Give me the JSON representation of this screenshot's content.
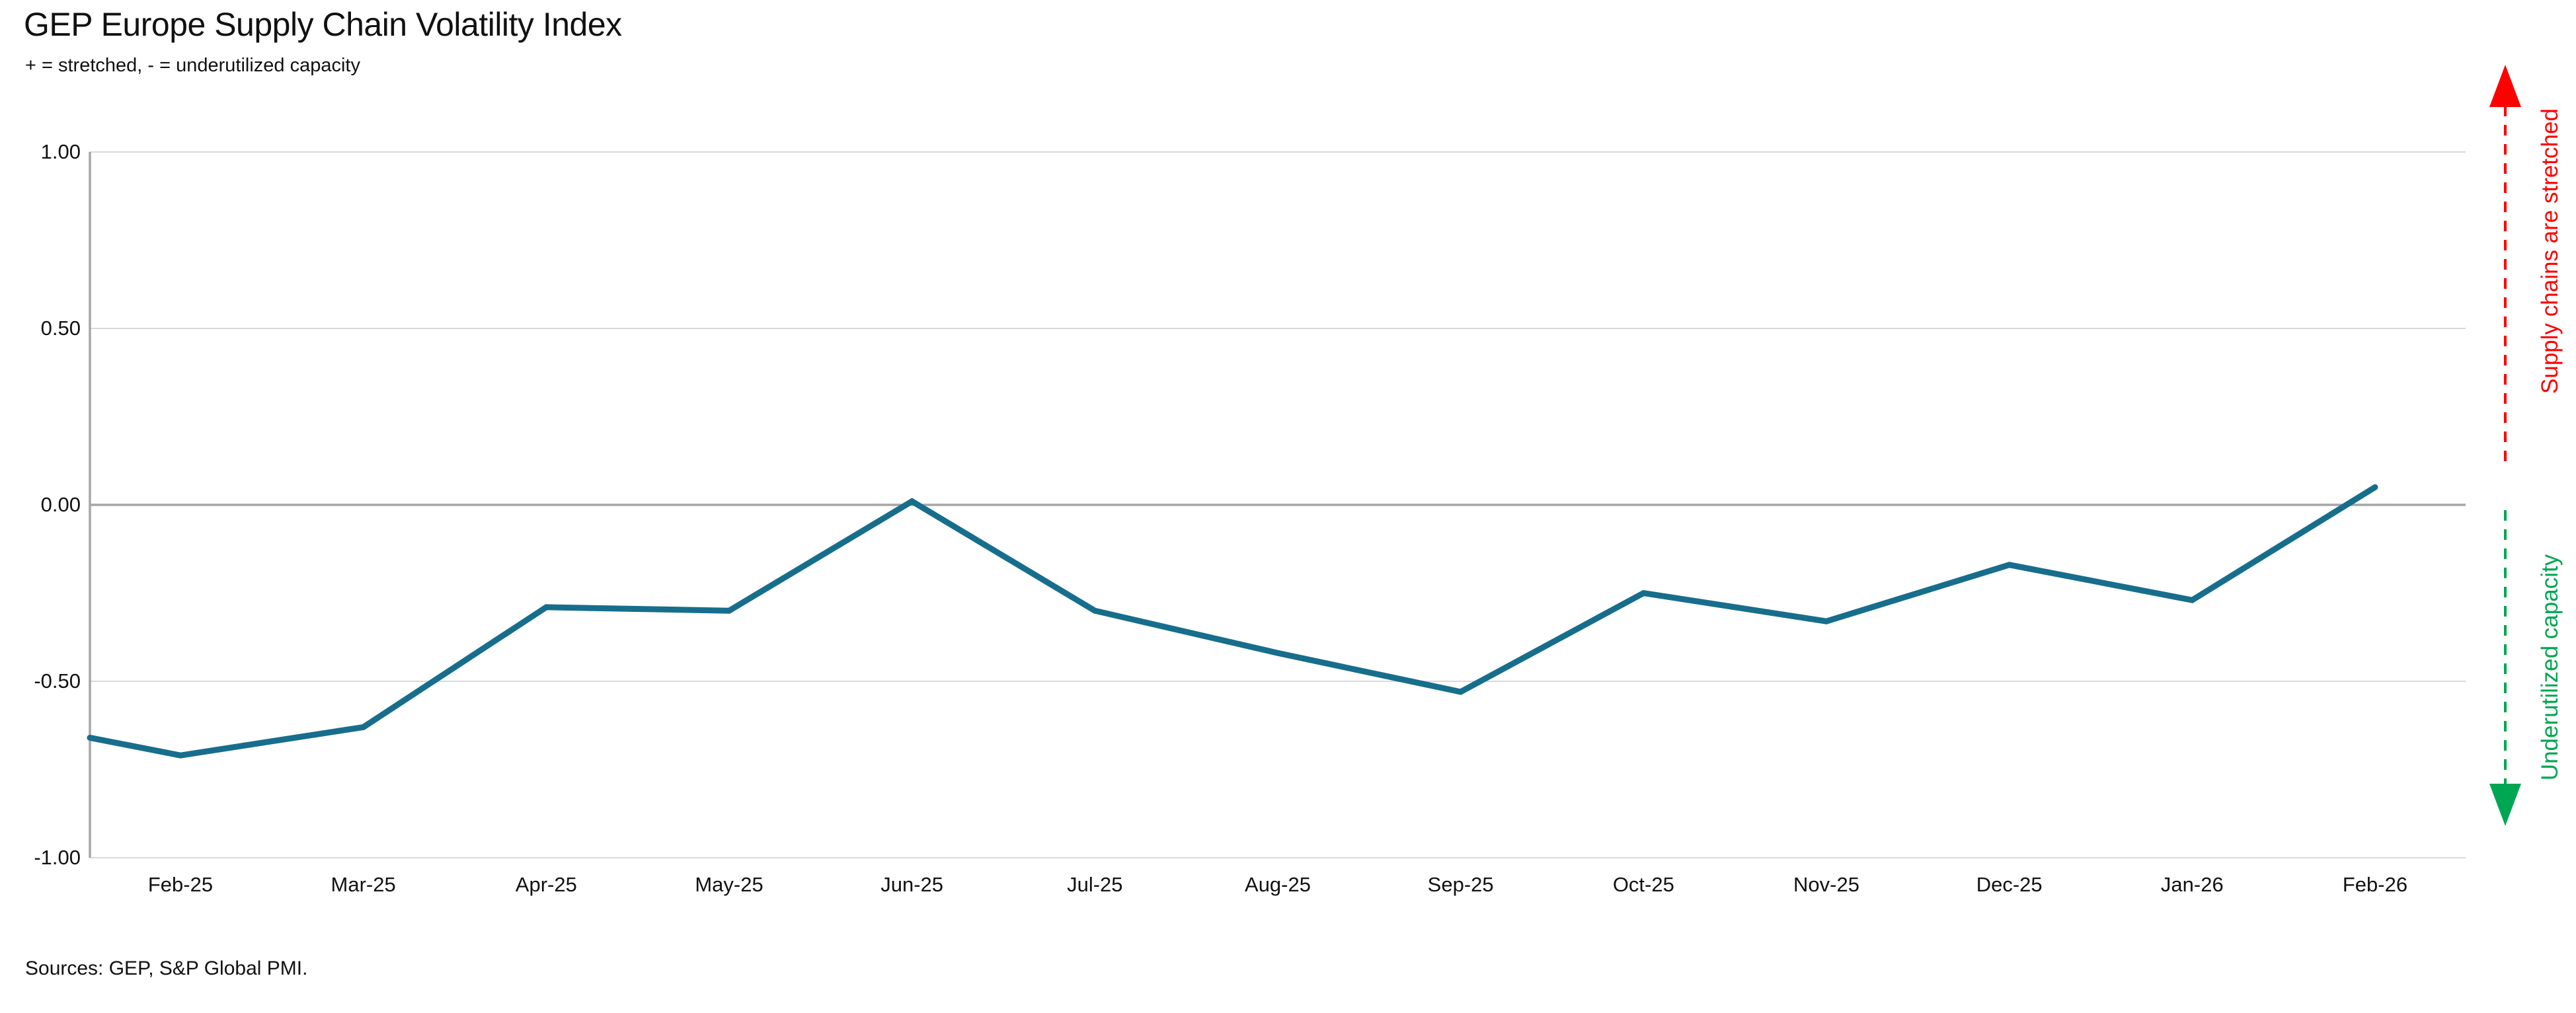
{
  "header": {
    "title": "GEP Europe Supply Chain Volatility Index",
    "subtitle": "+ = stretched, - = underutilized capacity"
  },
  "footer": {
    "sources": "Sources: GEP, S&P Global PMI."
  },
  "annotations": {
    "stretched_label": "Supply chains are stretched",
    "stretched_color": "#FF0000",
    "underutilized_label": "Underutilized capacity",
    "underutilized_color": "#00A651"
  },
  "chart_data": {
    "type": "line",
    "title": "GEP Europe Supply Chain Volatility Index",
    "subtitle": "+ = stretched, - = underutilized capacity",
    "categories": [
      "Feb-25",
      "Mar-25",
      "Apr-25",
      "May-25",
      "Jun-25",
      "Jul-25",
      "Aug-25",
      "Sep-25",
      "Oct-25",
      "Nov-25",
      "Dec-25",
      "Jan-26",
      "Feb-26"
    ],
    "values": [
      -0.71,
      -0.63,
      -0.29,
      -0.3,
      0.01,
      -0.3,
      -0.42,
      -0.53,
      -0.25,
      -0.33,
      -0.17,
      -0.27,
      0.05
    ],
    "left_edge_entry_value": -0.66,
    "left_edge_note": "line enters plot at left edge (segment from prior month clipped by axis minimum)",
    "ylim": [
      -1.0,
      1.0
    ],
    "yticks": [
      1.0,
      0.5,
      0.0,
      -0.5,
      -1.0
    ],
    "ytick_labels": [
      "1.00",
      "0.50",
      "0.00",
      "-0.50",
      "-1.00"
    ],
    "grid": "horizontal gridlines on; darker emphasized line at 0.00",
    "legend": "none",
    "line_color": "#176E8C",
    "grid_color": "#D9D9D9",
    "zero_line_color": "#A6A6A6",
    "axis_line_color": "#A6A6A6"
  }
}
